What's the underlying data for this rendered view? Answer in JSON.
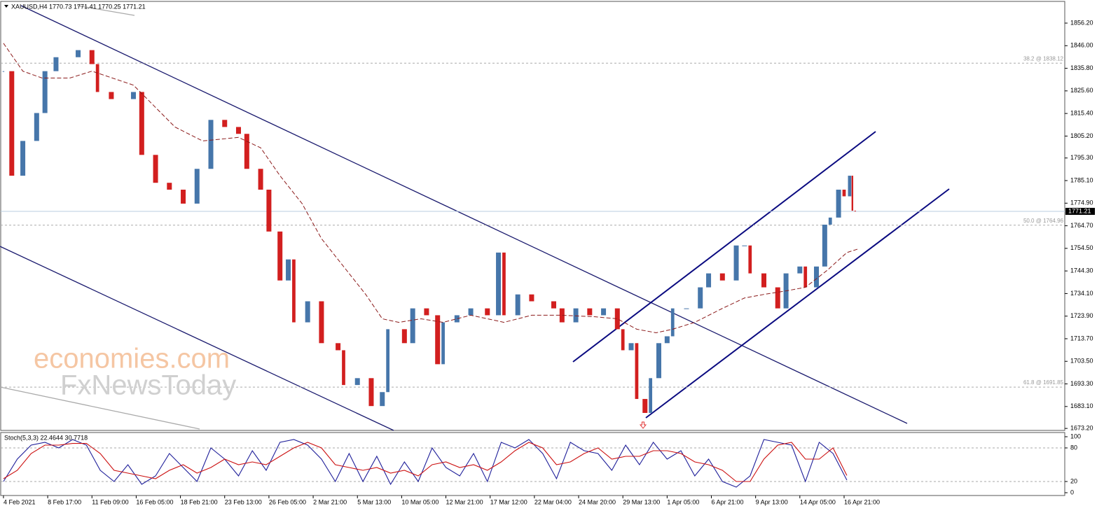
{
  "chart_data": [
    {
      "type": "candlestick",
      "title": "XAUUSD,H4  1770.73 1771.41 1770.25 1771.21",
      "x": [
        0,
        3,
        7,
        12,
        15,
        19,
        27,
        32,
        34,
        39,
        47,
        50,
        55,
        60,
        65,
        70,
        75,
        80,
        85,
        88,
        93,
        96,
        100,
        103,
        105,
        110,
        115,
        121,
        123,
        128,
        133,
        137,
        139,
        145,
        148,
        153,
        157,
        159,
        164,
        169,
        175,
        179,
        181,
        186,
        191,
        199,
        202,
        207,
        212,
        217,
        222,
        224,
        227,
        229,
        232,
        234,
        237,
        240,
        242,
        247,
        252,
        255,
        260,
        265,
        268,
        270,
        275,
        280,
        283,
        288,
        290,
        294,
        297,
        299,
        302,
        304,
        306,
        307,
        308
      ],
      "values": [
        1834.5,
        1787.3,
        1803.0,
        1815.6,
        1834.5,
        1840.8,
        1844.0,
        1837.7,
        1825.1,
        1821.9,
        1825.1,
        1796.7,
        1784.1,
        1781.0,
        1774.7,
        1790.4,
        1812.5,
        1809.3,
        1806.2,
        1790.4,
        1781.0,
        1762.1,
        1740.0,
        1749.5,
        1721.1,
        1730.6,
        1711.7,
        1708.5,
        1692.8,
        1695.9,
        1683.3,
        1689.6,
        1718.0,
        1711.7,
        1727.4,
        1724.3,
        1702.2,
        1721.1,
        1724.3,
        1727.4,
        1724.3,
        1752.6,
        1724.3,
        1733.7,
        1730.6,
        1727.4,
        1721.1,
        1727.4,
        1724.3,
        1727.4,
        1718.0,
        1708.5,
        1711.7,
        1686.5,
        1680.2,
        1695.9,
        1711.7,
        1714.8,
        1727.4,
        1727.4,
        1736.9,
        1743.2,
        1740.0,
        1755.8,
        1755.8,
        1743.2,
        1736.9,
        1727.4,
        1743.2,
        1746.3,
        1736.9,
        1746.3,
        1765.2,
        1768.4,
        1781.0,
        1778.0,
        1787.3,
        1771.5,
        1771.21
      ],
      "up_color": "#4676aa",
      "down_color": "#d21f1f",
      "moving_average": {
        "color": "#8b1a1a",
        "x": [
          0,
          7,
          14,
          24,
          32,
          47,
          52,
          62,
          72,
          85,
          93,
          100,
          108,
          115,
          123,
          131,
          137,
          143,
          151,
          159,
          169,
          181,
          191,
          202,
          214,
          222,
          229,
          236,
          242,
          250,
          260,
          268,
          275,
          283,
          290,
          298,
          305,
          309
        ],
        "values": [
          1847.1,
          1834.5,
          1831.4,
          1831.4,
          1834.5,
          1828.2,
          1821.9,
          1809.3,
          1803.0,
          1804.6,
          1799.9,
          1787.3,
          1774.7,
          1758.9,
          1746.3,
          1733.7,
          1722.7,
          1721.1,
          1722.7,
          1721.1,
          1724.3,
          1721.1,
          1724.3,
          1724.3,
          1723.6,
          1722.7,
          1718.0,
          1716.4,
          1718.0,
          1721.1,
          1727.4,
          1732.1,
          1733.7,
          1735.3,
          1736.9,
          1744.7,
          1752.6,
          1754.2
        ]
      },
      "current_price": 1771.21,
      "levels": [
        {
          "label": "38.2 @ 1838.12",
          "value": 1838.12
        },
        {
          "label": "50.0 @ 1764.96",
          "value": 1764.96
        },
        {
          "label": "61.8 @ 1691.85",
          "value": 1691.85
        }
      ],
      "watermark": [
        "economies.com",
        "FxNewsToday"
      ],
      "xlim": [
        -1,
        383.8
      ],
      "xticks": [
        {
          "value": 0,
          "label": "4 Feb 2021"
        },
        {
          "value": 16,
          "label": "8 Feb 17:00"
        },
        {
          "value": 32,
          "label": "11 Feb 09:00"
        },
        {
          "value": 48,
          "label": "16 Feb 05:00"
        },
        {
          "value": 64,
          "label": "18 Feb 21:00"
        },
        {
          "value": 80,
          "label": "23 Feb 13:00"
        },
        {
          "value": 96,
          "label": "26 Feb 05:00"
        },
        {
          "value": 112,
          "label": "2 Mar 21:00"
        },
        {
          "value": 128,
          "label": "5 Mar 13:00"
        },
        {
          "value": 144,
          "label": "10 Mar 05:00"
        },
        {
          "value": 160,
          "label": "12 Mar 21:00"
        },
        {
          "value": 176,
          "label": "17 Mar 12:00"
        },
        {
          "value": 192,
          "label": "22 Mar 04:00"
        },
        {
          "value": 208,
          "label": "24 Mar 20:00"
        },
        {
          "value": 224,
          "label": "29 Mar 13:00"
        },
        {
          "value": 240,
          "label": "1 Apr 05:00"
        },
        {
          "value": 256,
          "label": "6 Apr 21:00"
        },
        {
          "value": 272,
          "label": "9 Apr 13:00"
        },
        {
          "value": 288,
          "label": "14 Apr 05:00"
        },
        {
          "value": 304,
          "label": "16 Apr 21:00"
        }
      ],
      "ylim": [
        1672.3,
        1866.0
      ],
      "yticks": [
        {
          "value": 1856.2,
          "label": "1856.20"
        },
        {
          "value": 1846,
          "label": "1846.00"
        },
        {
          "value": 1835.8,
          "label": "1835.80"
        },
        {
          "value": 1825.6,
          "label": "1825.60"
        },
        {
          "value": 1815.4,
          "label": "1815.40"
        },
        {
          "value": 1805.2,
          "label": "1805.20"
        },
        {
          "value": 1795.3,
          "label": "1795.30"
        },
        {
          "value": 1785.1,
          "label": "1785.10"
        },
        {
          "value": 1774.9,
          "label": "1774.90"
        },
        {
          "value": 1764.7,
          "label": "1764.70"
        },
        {
          "value": 1754.5,
          "label": "1754.50"
        },
        {
          "value": 1744.3,
          "label": "1744.30"
        },
        {
          "value": 1734.1,
          "label": "1734.10"
        },
        {
          "value": 1723.9,
          "label": "1723.90"
        },
        {
          "value": 1713.7,
          "label": "1713.70"
        },
        {
          "value": 1703.5,
          "label": "1703.50"
        },
        {
          "value": 1693.3,
          "label": "1693.30"
        },
        {
          "value": 1683.1,
          "label": "1683.10"
        },
        {
          "value": 1673.2,
          "label": "1673.20"
        }
      ]
    },
    {
      "type": "line",
      "title": "Stoch(5,3,3) 22.4644 30.7718",
      "x": [
        0,
        5,
        10,
        15,
        20,
        25,
        30,
        35,
        40,
        45,
        50,
        55,
        60,
        65,
        70,
        75,
        80,
        85,
        90,
        95,
        100,
        105,
        110,
        115,
        120,
        125,
        130,
        135,
        140,
        145,
        150,
        155,
        160,
        165,
        170,
        175,
        180,
        185,
        190,
        195,
        200,
        205,
        210,
        215,
        220,
        225,
        230,
        235,
        240,
        245,
        250,
        255,
        260,
        265,
        270,
        275,
        280,
        285,
        290,
        295,
        300,
        305
      ],
      "series": [
        {
          "color": "#1f1f9a",
          "values": [
            20,
            60,
            85,
            90,
            80,
            95,
            85,
            40,
            20,
            50,
            15,
            30,
            70,
            45,
            20,
            80,
            60,
            30,
            75,
            40,
            90,
            95,
            85,
            60,
            20,
            70,
            20,
            65,
            15,
            55,
            20,
            80,
            45,
            30,
            70,
            20,
            90,
            80,
            95,
            70,
            25,
            90,
            75,
            70,
            40,
            85,
            50,
            90,
            60,
            75,
            30,
            60,
            20,
            10,
            30,
            95,
            90,
            85,
            20,
            90,
            70,
            22.4644
          ]
        },
        {
          "color": "#cc1010",
          "values": [
            25,
            40,
            70,
            85,
            85,
            88,
            88,
            70,
            40,
            35,
            30,
            25,
            40,
            50,
            35,
            45,
            60,
            50,
            55,
            50,
            65,
            80,
            90,
            80,
            50,
            45,
            40,
            45,
            35,
            40,
            30,
            50,
            55,
            45,
            50,
            40,
            55,
            75,
            90,
            80,
            50,
            55,
            70,
            80,
            60,
            65,
            65,
            75,
            75,
            70,
            55,
            50,
            40,
            20,
            20,
            60,
            85,
            90,
            60,
            60,
            80,
            30.7718
          ]
        }
      ],
      "levels": [
        20,
        80
      ],
      "xlim": [
        -1,
        383.8
      ],
      "ylim": [
        -5,
        107.5
      ],
      "yticks": [
        0,
        20,
        80,
        100
      ]
    }
  ]
}
